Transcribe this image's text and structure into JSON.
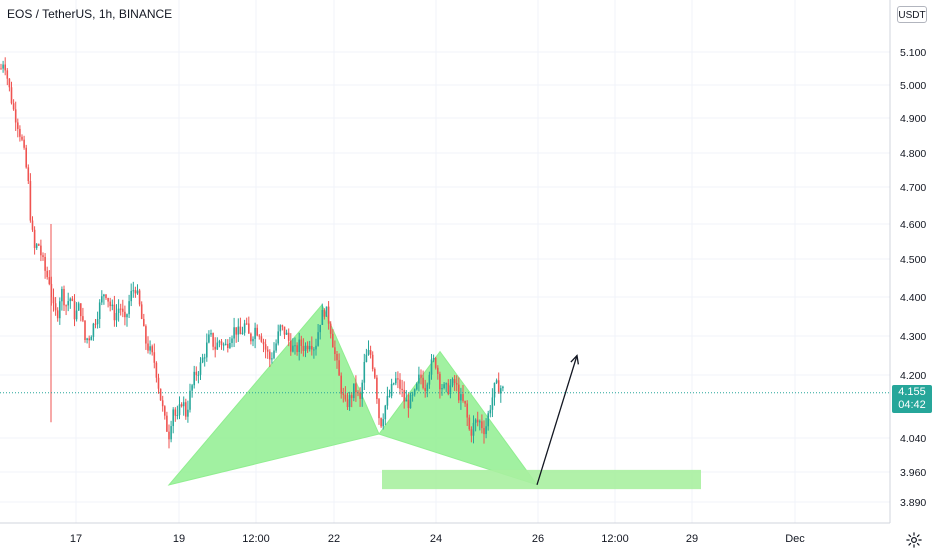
{
  "header": {
    "title": "EOS / TetherUS, 1h, BINANCE",
    "currency": "USDT"
  },
  "price_badge": {
    "price": "4.155",
    "countdown": "04:42",
    "color": "#26a69a"
  },
  "colors": {
    "up": "#26a69a",
    "down": "#ef5350",
    "pattern_fill": "#90ee90",
    "zone_fill": "#a8f0a0",
    "arrow": "#131722",
    "grid": "#f0f3fa"
  },
  "icons": {
    "settings": "gear-icon"
  },
  "chart_data": {
    "type": "candlestick",
    "title": "EOS / TetherUS, 1h, BINANCE",
    "y_ticks": [
      "5.100",
      "5.000",
      "4.900",
      "4.800",
      "4.700",
      "4.600",
      "4.500",
      "4.400",
      "4.300",
      "4.200",
      "4.040",
      "3.960",
      "3.890"
    ],
    "x_ticks": [
      "17",
      "19",
      "12:00",
      "22",
      "24",
      "26",
      "12:00",
      "29",
      "Dec"
    ],
    "last_price": 4.155,
    "price_path": [
      [
        1,
        5.05
      ],
      [
        4,
        5.08
      ],
      [
        8,
        5.01
      ],
      [
        13,
        4.93
      ],
      [
        18,
        4.88
      ],
      [
        23,
        4.82
      ],
      [
        28,
        4.72
      ],
      [
        31,
        4.6
      ],
      [
        35,
        4.52
      ],
      [
        38,
        4.55
      ],
      [
        42,
        4.5
      ],
      [
        46,
        4.46
      ],
      [
        50,
        4.44
      ],
      [
        53,
        4.37
      ],
      [
        57,
        4.35
      ],
      [
        61,
        4.42
      ],
      [
        66,
        4.38
      ],
      [
        70,
        4.4
      ],
      [
        75,
        4.35
      ],
      [
        80,
        4.38
      ],
      [
        85,
        4.29
      ],
      [
        90,
        4.3
      ],
      [
        95,
        4.34
      ],
      [
        100,
        4.38
      ],
      [
        105,
        4.42
      ],
      [
        110,
        4.38
      ],
      [
        115,
        4.35
      ],
      [
        120,
        4.38
      ],
      [
        125,
        4.33
      ],
      [
        130,
        4.4
      ],
      [
        135,
        4.43
      ],
      [
        140,
        4.37
      ],
      [
        145,
        4.29
      ],
      [
        150,
        4.26
      ],
      [
        155,
        4.23
      ],
      [
        160,
        4.15
      ],
      [
        165,
        4.08
      ],
      [
        169,
        4.05
      ],
      [
        173,
        4.12
      ],
      [
        177,
        4.08
      ],
      [
        182,
        4.14
      ],
      [
        186,
        4.1
      ],
      [
        190,
        4.15
      ],
      [
        195,
        4.2
      ],
      [
        200,
        4.22
      ],
      [
        205,
        4.26
      ],
      [
        210,
        4.3
      ],
      [
        215,
        4.27
      ],
      [
        220,
        4.29
      ],
      [
        225,
        4.27
      ],
      [
        230,
        4.3
      ],
      [
        235,
        4.32
      ],
      [
        240,
        4.3
      ],
      [
        245,
        4.33
      ],
      [
        250,
        4.29
      ],
      [
        255,
        4.32
      ],
      [
        260,
        4.31
      ],
      [
        265,
        4.27
      ],
      [
        270,
        4.24
      ],
      [
        275,
        4.27
      ],
      [
        280,
        4.32
      ],
      [
        285,
        4.31
      ],
      [
        290,
        4.28
      ],
      [
        295,
        4.26
      ],
      [
        300,
        4.28
      ],
      [
        305,
        4.27
      ],
      [
        310,
        4.29
      ],
      [
        315,
        4.27
      ],
      [
        320,
        4.34
      ],
      [
        325,
        4.37
      ],
      [
        330,
        4.33
      ],
      [
        335,
        4.25
      ],
      [
        340,
        4.18
      ],
      [
        345,
        4.12
      ],
      [
        350,
        4.14
      ],
      [
        355,
        4.17
      ],
      [
        360,
        4.13
      ],
      [
        365,
        4.24
      ],
      [
        370,
        4.26
      ],
      [
        375,
        4.2
      ],
      [
        380,
        4.07
      ],
      [
        385,
        4.12
      ],
      [
        390,
        4.15
      ],
      [
        395,
        4.19
      ],
      [
        400,
        4.17
      ],
      [
        405,
        4.13
      ],
      [
        410,
        4.13
      ],
      [
        415,
        4.15
      ],
      [
        420,
        4.2
      ],
      [
        425,
        4.17
      ],
      [
        430,
        4.22
      ],
      [
        435,
        4.24
      ],
      [
        440,
        4.18
      ],
      [
        445,
        4.16
      ],
      [
        450,
        4.17
      ],
      [
        455,
        4.18
      ],
      [
        460,
        4.14
      ],
      [
        465,
        4.12
      ],
      [
        470,
        4.05
      ],
      [
        475,
        4.08
      ],
      [
        480,
        4.08
      ],
      [
        485,
        4.06
      ],
      [
        490,
        4.12
      ],
      [
        495,
        4.17
      ],
      [
        500,
        4.17
      ],
      [
        505,
        4.155
      ]
    ],
    "pattern_points": [
      {
        "x": 169,
        "y": 3.93
      },
      {
        "x": 322,
        "y": 4.38
      },
      {
        "x": 379,
        "y": 4.05
      },
      {
        "x": 440,
        "y": 4.26
      },
      {
        "x": 537,
        "y": 3.93
      }
    ],
    "support_zone": {
      "x0": 382,
      "x1": 701,
      "y_low": 3.92,
      "y_high": 3.965
    },
    "projection_arrow": {
      "from": {
        "x": 537,
        "y": 3.93
      },
      "to": {
        "x": 577,
        "y": 4.25
      }
    },
    "big_wick": {
      "x": 51,
      "high": 4.6,
      "low": 4.08
    }
  }
}
